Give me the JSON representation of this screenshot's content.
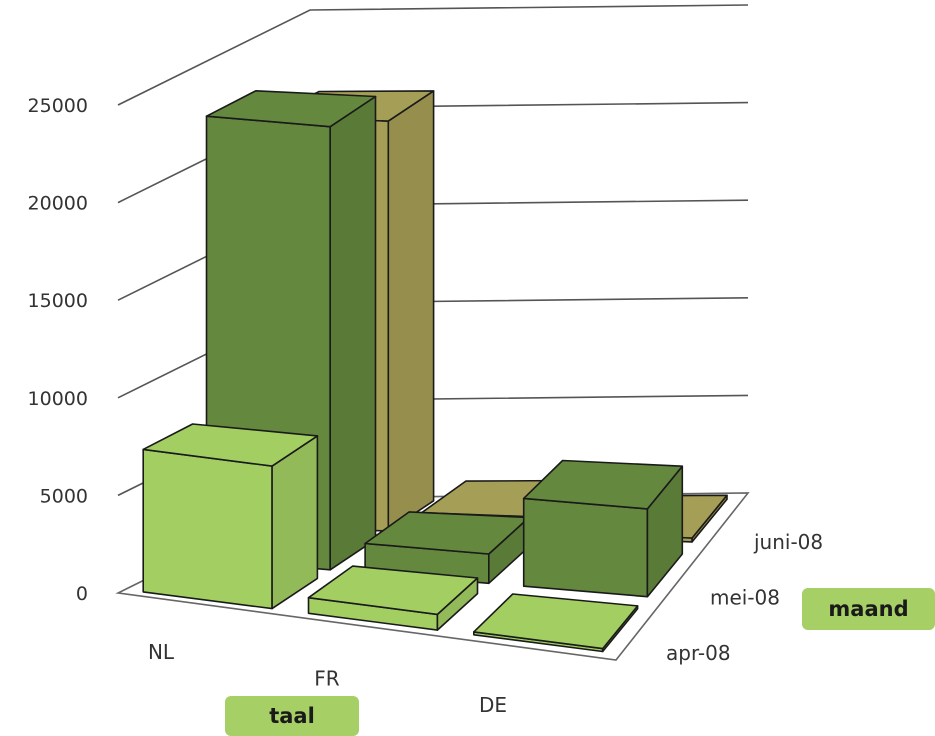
{
  "chart_data": {
    "type": "bar",
    "subtype": "3d-column",
    "categories": [
      "NL",
      "FR",
      "DE"
    ],
    "series": [
      {
        "name": "apr-08",
        "values": [
          7300,
          800,
          150
        ],
        "color": "#a3cf62"
      },
      {
        "name": "mei-08",
        "values": [
          22700,
          1500,
          4500
        ],
        "color": "#64883e"
      },
      {
        "name": "juni-08",
        "values": [
          21000,
          1000,
          200
        ],
        "color": "#a59e56"
      }
    ],
    "yticks": [
      "0",
      "5000",
      "10000",
      "15000",
      "20000",
      "25000"
    ],
    "ylim": [
      0,
      25000
    ],
    "grid": true
  },
  "labels": {
    "xaxis_badge": "taal",
    "series_badge": "maand"
  }
}
